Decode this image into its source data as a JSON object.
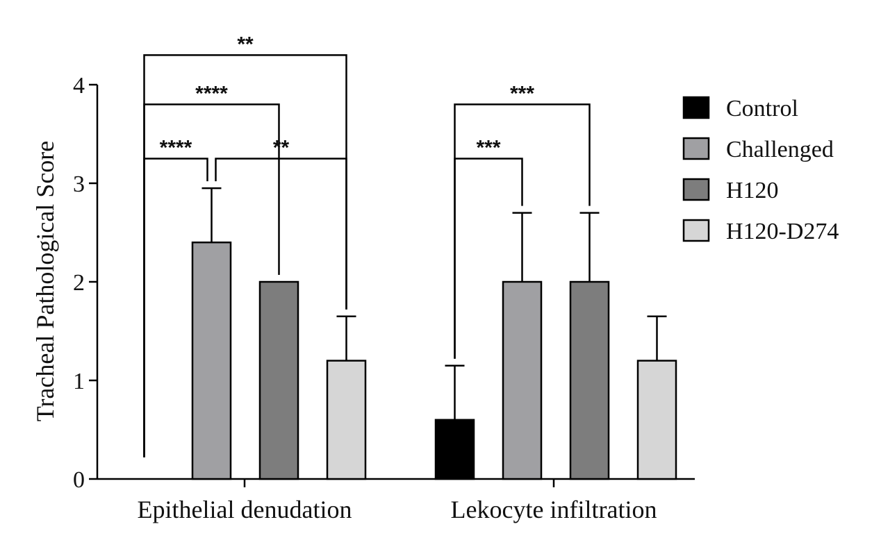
{
  "chart_data": {
    "type": "bar",
    "title": "",
    "xlabel": "",
    "ylabel": "Tracheal Pathological Score",
    "ylim": [
      0,
      4
    ],
    "yticks": [
      "0",
      "1",
      "2",
      "3",
      "4"
    ],
    "grid": false,
    "legend_position": "right",
    "categories": [
      "Epithelial denudation",
      "Lekocyte infiltration"
    ],
    "series": [
      {
        "name": "Control",
        "color": "#000000",
        "values": [
          0,
          0.6
        ],
        "errors": [
          0,
          0.55
        ]
      },
      {
        "name": "Challenged",
        "color": "#a0a0a3",
        "values": [
          2.4,
          2.0
        ],
        "errors": [
          0.55,
          0.7
        ]
      },
      {
        "name": "H120",
        "color": "#7d7d7d",
        "values": [
          2.0,
          2.0
        ],
        "errors": [
          0,
          0.7
        ]
      },
      {
        "name": "H120-D274",
        "color": "#d6d6d6",
        "values": [
          1.2,
          1.2
        ],
        "errors": [
          0.45,
          0.45
        ]
      }
    ],
    "significance": [
      {
        "category": 0,
        "from": 0,
        "to": 3,
        "label": "**",
        "level": 4.3
      },
      {
        "category": 0,
        "from": 0,
        "to": 2,
        "label": "****",
        "level": 3.8
      },
      {
        "category": 0,
        "from": 0,
        "to": 1,
        "label": "****",
        "level": 3.25
      },
      {
        "category": 0,
        "from": 1,
        "to": 3,
        "label": "**",
        "level": 3.25
      },
      {
        "category": 1,
        "from": 0,
        "to": 2,
        "label": "***",
        "level": 3.8
      },
      {
        "category": 1,
        "from": 0,
        "to": 1,
        "label": "***",
        "level": 3.25
      }
    ]
  }
}
